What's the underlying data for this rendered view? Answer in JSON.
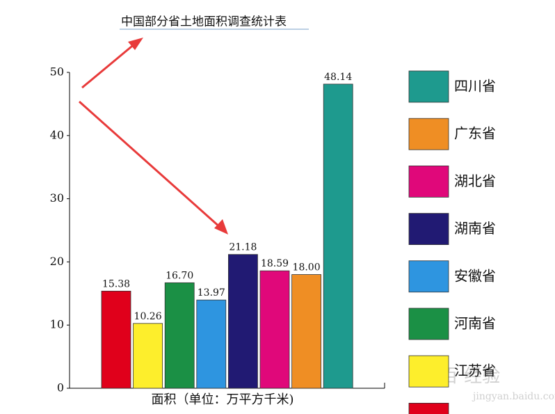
{
  "chart_data": {
    "type": "bar",
    "title": "中国部分省土地面积调查统计表",
    "x_label": "面积（单位：万平方千米)",
    "categories": [
      null,
      "江苏省",
      "河南省",
      "安徽省",
      "湖南省",
      "湖北省",
      "广东省",
      "四川省"
    ],
    "values": [
      15.38,
      10.26,
      16.7,
      13.97,
      21.18,
      18.59,
      18,
      48.14
    ],
    "value_labels": [
      "15.38",
      "10.26",
      "16.70",
      "13.97",
      "21.18",
      "18.59",
      "18.00",
      "48.14"
    ],
    "colors": [
      "#e0001b",
      "#fdee2c",
      "#1b9045",
      "#2e95e0",
      "#211a73",
      "#e0087a",
      "#ef8e24",
      "#1e9a8e"
    ],
    "ylim": [
      0,
      50
    ],
    "yticks": [
      0,
      10,
      20,
      30,
      40,
      50
    ],
    "watermark": [
      "Bai百 经验",
      "jingyan.baidu.com"
    ]
  }
}
